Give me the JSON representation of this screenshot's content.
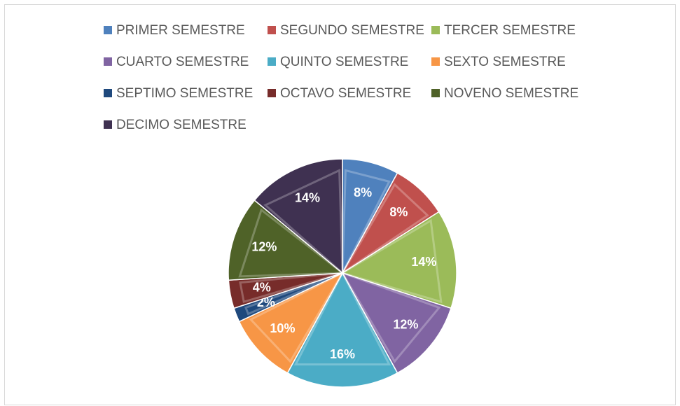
{
  "chart_data": {
    "type": "pie",
    "categories": [
      "PRIMER SEMESTRE",
      "SEGUNDO SEMESTRE",
      "TERCER SEMESTRE",
      "CUARTO SEMESTRE",
      "QUINTO SEMESTRE",
      "SEXTO SEMESTRE",
      "SEPTIMO SEMESTRE",
      "OCTAVO SEMESTRE",
      "NOVENO SEMESTRE",
      "DECIMO SEMESTRE"
    ],
    "values": [
      8,
      8,
      14,
      12,
      16,
      10,
      2,
      4,
      12,
      14
    ],
    "value_labels": [
      "8%",
      "8%",
      "14%",
      "12%",
      "16%",
      "10%",
      "2%",
      "4%",
      "12%",
      "14%"
    ],
    "colors": [
      "#4f81bd",
      "#c0504d",
      "#9bbb59",
      "#8064a2",
      "#4bacc6",
      "#f79646",
      "#1f497d",
      "#772c2a",
      "#4f6228",
      "#3f3151"
    ],
    "legend": "top"
  }
}
